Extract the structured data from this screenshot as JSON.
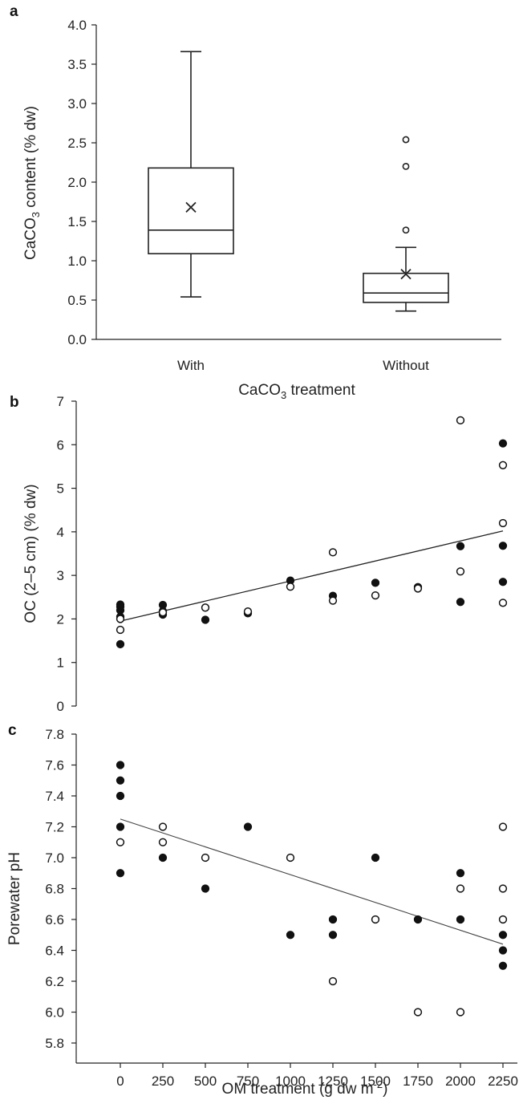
{
  "chart_data": [
    {
      "panel": "a",
      "type": "box",
      "categories": [
        "With",
        "Without"
      ],
      "xlabel_parts": [
        "CaCO",
        "3",
        " treatment"
      ],
      "ylabel_parts": [
        "CaCO",
        "3",
        " content (% dw)"
      ],
      "ylim": [
        0,
        4
      ],
      "yticks": [
        "0.0",
        "0.5",
        "1.0",
        "1.5",
        "2.0",
        "2.5",
        "3.0",
        "3.5",
        "4.0"
      ],
      "boxes": [
        {
          "category": "With",
          "min": 0.54,
          "q1": 1.09,
          "median": 1.39,
          "q3": 2.18,
          "max": 3.66,
          "mean": 1.68,
          "outliers": []
        },
        {
          "category": "Without",
          "min": 0.36,
          "q1": 0.47,
          "median": 0.59,
          "q3": 0.84,
          "max": 1.17,
          "mean": 0.83,
          "outliers": [
            1.39,
            2.2,
            2.54
          ]
        }
      ]
    },
    {
      "panel": "b",
      "type": "scatter",
      "ylabel": "OC (2–5 cm) (% dw)",
      "xlim": [
        -120,
        2280
      ],
      "ylim": [
        0,
        7
      ],
      "yticks": [
        "0",
        "1",
        "2",
        "3",
        "4",
        "5",
        "6",
        "7"
      ],
      "series": [
        {
          "marker": "filled",
          "points": [
            [
              0,
              1.42
            ],
            [
              0,
              2.05
            ],
            [
              0,
              2.2
            ],
            [
              0,
              2.28
            ],
            [
              0,
              2.33
            ],
            [
              250,
              2.1
            ],
            [
              250,
              2.18
            ],
            [
              250,
              2.32
            ],
            [
              500,
              1.98
            ],
            [
              750,
              2.13
            ],
            [
              1000,
              2.88
            ],
            [
              1250,
              2.53
            ],
            [
              1500,
              2.83
            ],
            [
              1750,
              2.73
            ],
            [
              2000,
              2.39
            ],
            [
              2000,
              3.67
            ],
            [
              2250,
              2.85
            ],
            [
              2250,
              3.68
            ],
            [
              2250,
              6.03
            ]
          ]
        },
        {
          "marker": "open",
          "points": [
            [
              0,
              1.75
            ],
            [
              0,
              2.0
            ],
            [
              250,
              2.15
            ],
            [
              500,
              2.26
            ],
            [
              750,
              2.17
            ],
            [
              1000,
              2.74
            ],
            [
              1250,
              2.42
            ],
            [
              1250,
              3.53
            ],
            [
              1500,
              2.54
            ],
            [
              1750,
              2.7
            ],
            [
              2000,
              3.09
            ],
            [
              2000,
              6.56
            ],
            [
              2250,
              2.37
            ],
            [
              2250,
              4.2
            ],
            [
              2250,
              5.53
            ]
          ]
        }
      ],
      "trendline": {
        "x": [
          0,
          2250
        ],
        "y": [
          1.95,
          4.02
        ]
      }
    },
    {
      "panel": "c",
      "type": "scatter",
      "xlabel_parts": [
        "OM treatment (g dw m",
        "-2",
        ")"
      ],
      "ylabel": "Porewater pH",
      "xlim": [
        -120,
        2280
      ],
      "ylim": [
        5.8,
        7.8
      ],
      "xticks": [
        "0",
        "250",
        "500",
        "750",
        "1000",
        "1250",
        "1500",
        "1750",
        "2000",
        "2250"
      ],
      "yticks": [
        "5.8",
        "6.0",
        "6.2",
        "6.4",
        "6.6",
        "6.8",
        "7.0",
        "7.2",
        "7.4",
        "7.6",
        "7.8"
      ],
      "series": [
        {
          "marker": "filled",
          "points": [
            [
              0,
              6.9
            ],
            [
              0,
              7.2
            ],
            [
              0,
              7.4
            ],
            [
              0,
              7.5
            ],
            [
              0,
              7.6
            ],
            [
              250,
              7.0
            ],
            [
              500,
              6.8
            ],
            [
              750,
              7.2
            ],
            [
              1000,
              6.5
            ],
            [
              1250,
              6.5
            ],
            [
              1250,
              6.6
            ],
            [
              1500,
              7.0
            ],
            [
              1750,
              6.6
            ],
            [
              2000,
              6.6
            ],
            [
              2000,
              6.9
            ],
            [
              2250,
              6.3
            ],
            [
              2250,
              6.4
            ],
            [
              2250,
              6.5
            ]
          ]
        },
        {
          "marker": "open",
          "points": [
            [
              0,
              7.1
            ],
            [
              250,
              7.1
            ],
            [
              250,
              7.2
            ],
            [
              500,
              7.0
            ],
            [
              1000,
              7.0
            ],
            [
              1250,
              6.2
            ],
            [
              1500,
              6.6
            ],
            [
              1750,
              6.0
            ],
            [
              2000,
              6.0
            ],
            [
              2000,
              6.8
            ],
            [
              2250,
              6.6
            ],
            [
              2250,
              6.8
            ],
            [
              2250,
              7.2
            ]
          ]
        }
      ],
      "trendline": {
        "x": [
          0,
          2250
        ],
        "y": [
          7.25,
          6.44
        ]
      }
    }
  ]
}
